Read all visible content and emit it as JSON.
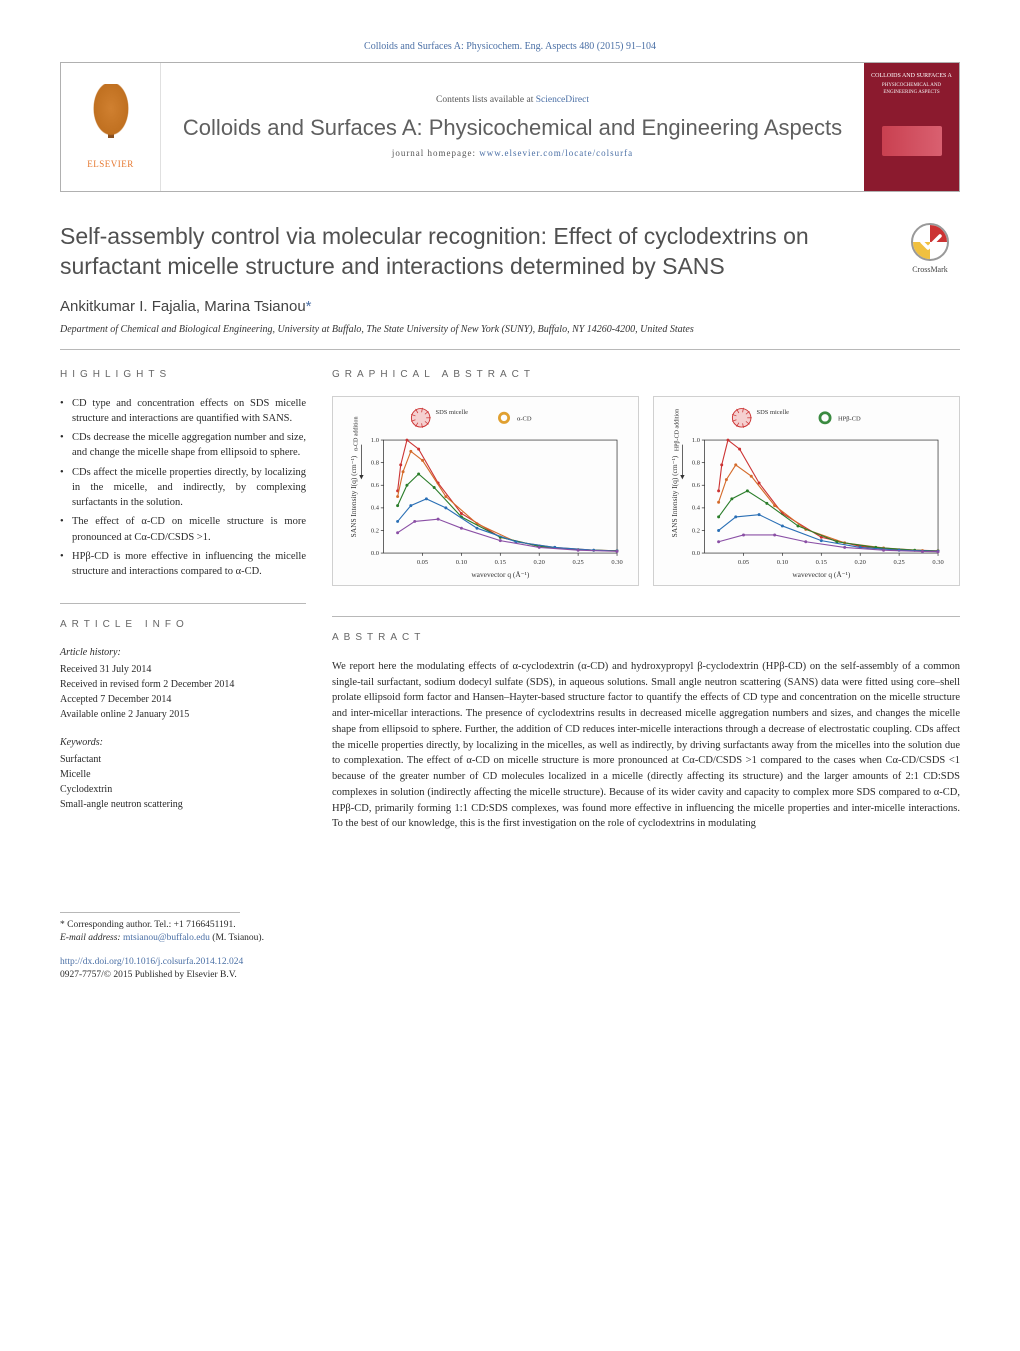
{
  "citation": "Colloids and Surfaces A: Physicochem. Eng. Aspects 480 (2015) 91–104",
  "header": {
    "contents_prefix": "Contents lists available at ",
    "contents_link": "ScienceDirect",
    "journal_name": "Colloids and Surfaces A: Physicochemical and Engineering Aspects",
    "homepage_prefix": "journal homepage: ",
    "homepage_url": "www.elsevier.com/locate/colsurfa",
    "elsevier": "ELSEVIER",
    "cover_title": "COLLOIDS AND SURFACES A",
    "cover_sub": "PHYSICOCHEMICAL AND ENGINEERING ASPECTS"
  },
  "title": "Self-assembly control via molecular recognition: Effect of cyclodextrins on surfactant micelle structure and interactions determined by SANS",
  "crossmark": "CrossMark",
  "authors": "Ankitkumar I. Fajalia, Marina Tsianou",
  "corr_marker": "*",
  "affiliation": "Department of Chemical and Biological Engineering, University at Buffalo, The State University of New York (SUNY), Buffalo, NY 14260-4200, United States",
  "highlights": {
    "label": "HIGHLIGHTS",
    "items": [
      "CD type and concentration effects on SDS micelle structure and interactions are quantified with SANS.",
      "CDs decrease the micelle aggregation number and size, and change the micelle shape from ellipsoid to sphere.",
      "CDs affect the micelle properties directly, by localizing in the micelle, and indirectly, by complexing surfactants in the solution.",
      "The effect of α-CD on micelle structure is more pronounced at Cα-CD/CSDS >1.",
      "HPβ-CD is more effective in influencing the micelle structure and interactions compared to α-CD."
    ]
  },
  "graphical": {
    "label": "GRAPHICAL ABSTRACT",
    "chart_left": {
      "legend": [
        "SDS micelle",
        "α-CD"
      ],
      "side_label": "α-CD addition",
      "ylabel": "SANS Intensity I(q) (cm⁻¹)",
      "xlabel": "wavevector q (Å⁻¹)",
      "xmin": 0.0,
      "xmax": 0.3,
      "xticks": [
        0.05,
        0.1,
        0.15,
        0.2,
        0.25,
        0.3
      ],
      "ymin": 0.0,
      "ymax": 1.0,
      "yticks": [
        0.0,
        0.2,
        0.4,
        0.6,
        0.8,
        1.0
      ],
      "series": [
        {
          "color": "#cc3333",
          "pts": [
            [
              0.018,
              0.55
            ],
            [
              0.022,
              0.78
            ],
            [
              0.03,
              1.0
            ],
            [
              0.045,
              0.92
            ],
            [
              0.07,
              0.62
            ],
            [
              0.1,
              0.35
            ],
            [
              0.15,
              0.14
            ],
            [
              0.2,
              0.06
            ],
            [
              0.25,
              0.03
            ],
            [
              0.3,
              0.02
            ]
          ]
        },
        {
          "color": "#d46a2a",
          "pts": [
            [
              0.018,
              0.5
            ],
            [
              0.025,
              0.72
            ],
            [
              0.035,
              0.9
            ],
            [
              0.05,
              0.82
            ],
            [
              0.08,
              0.5
            ],
            [
              0.12,
              0.26
            ],
            [
              0.17,
              0.1
            ],
            [
              0.22,
              0.05
            ],
            [
              0.27,
              0.025
            ],
            [
              0.3,
              0.018
            ]
          ]
        },
        {
          "color": "#2a7d2a",
          "pts": [
            [
              0.018,
              0.42
            ],
            [
              0.03,
              0.6
            ],
            [
              0.045,
              0.7
            ],
            [
              0.065,
              0.58
            ],
            [
              0.1,
              0.32
            ],
            [
              0.15,
              0.14
            ],
            [
              0.2,
              0.06
            ],
            [
              0.25,
              0.03
            ],
            [
              0.3,
              0.02
            ]
          ]
        },
        {
          "color": "#2a6fb5",
          "pts": [
            [
              0.018,
              0.28
            ],
            [
              0.035,
              0.42
            ],
            [
              0.055,
              0.48
            ],
            [
              0.08,
              0.4
            ],
            [
              0.12,
              0.22
            ],
            [
              0.17,
              0.1
            ],
            [
              0.22,
              0.05
            ],
            [
              0.27,
              0.025
            ],
            [
              0.3,
              0.018
            ]
          ]
        },
        {
          "color": "#8a4fa5",
          "pts": [
            [
              0.018,
              0.18
            ],
            [
              0.04,
              0.28
            ],
            [
              0.07,
              0.3
            ],
            [
              0.1,
              0.22
            ],
            [
              0.15,
              0.11
            ],
            [
              0.2,
              0.05
            ],
            [
              0.25,
              0.025
            ],
            [
              0.3,
              0.015
            ]
          ]
        }
      ],
      "axis_color": "#333333",
      "font_size": 7
    },
    "chart_right": {
      "legend": [
        "SDS micelle",
        "HPβ-CD"
      ],
      "side_label": "HPβ-CD addition",
      "ylabel": "SANS Intensity I(q) (cm⁻¹)",
      "xlabel": "wavevector q (Å⁻¹)",
      "xmin": 0.0,
      "xmax": 0.3,
      "xticks": [
        0.05,
        0.1,
        0.15,
        0.2,
        0.25,
        0.3
      ],
      "ymin": 0.0,
      "ymax": 1.0,
      "yticks": [
        0.0,
        0.2,
        0.4,
        0.6,
        0.8,
        1.0
      ],
      "series": [
        {
          "color": "#cc3333",
          "pts": [
            [
              0.018,
              0.55
            ],
            [
              0.022,
              0.78
            ],
            [
              0.03,
              1.0
            ],
            [
              0.045,
              0.92
            ],
            [
              0.07,
              0.62
            ],
            [
              0.1,
              0.35
            ],
            [
              0.15,
              0.14
            ],
            [
              0.2,
              0.06
            ],
            [
              0.25,
              0.03
            ],
            [
              0.3,
              0.02
            ]
          ]
        },
        {
          "color": "#d46a2a",
          "pts": [
            [
              0.018,
              0.45
            ],
            [
              0.028,
              0.65
            ],
            [
              0.04,
              0.78
            ],
            [
              0.06,
              0.68
            ],
            [
              0.09,
              0.42
            ],
            [
              0.13,
              0.21
            ],
            [
              0.18,
              0.09
            ],
            [
              0.23,
              0.045
            ],
            [
              0.28,
              0.022
            ],
            [
              0.3,
              0.018
            ]
          ]
        },
        {
          "color": "#2a7d2a",
          "pts": [
            [
              0.018,
              0.32
            ],
            [
              0.035,
              0.48
            ],
            [
              0.055,
              0.55
            ],
            [
              0.08,
              0.44
            ],
            [
              0.12,
              0.24
            ],
            [
              0.17,
              0.1
            ],
            [
              0.22,
              0.05
            ],
            [
              0.27,
              0.025
            ],
            [
              0.3,
              0.018
            ]
          ]
        },
        {
          "color": "#2a6fb5",
          "pts": [
            [
              0.018,
              0.2
            ],
            [
              0.04,
              0.32
            ],
            [
              0.07,
              0.34
            ],
            [
              0.1,
              0.24
            ],
            [
              0.15,
              0.11
            ],
            [
              0.2,
              0.05
            ],
            [
              0.25,
              0.025
            ],
            [
              0.3,
              0.015
            ]
          ]
        },
        {
          "color": "#8a4fa5",
          "pts": [
            [
              0.018,
              0.1
            ],
            [
              0.05,
              0.16
            ],
            [
              0.09,
              0.16
            ],
            [
              0.13,
              0.1
            ],
            [
              0.18,
              0.05
            ],
            [
              0.23,
              0.025
            ],
            [
              0.28,
              0.014
            ],
            [
              0.3,
              0.012
            ]
          ]
        }
      ],
      "axis_color": "#333333",
      "font_size": 7
    }
  },
  "article_info": {
    "label": "ARTICLE INFO",
    "history_label": "Article history:",
    "history": [
      "Received 31 July 2014",
      "Received in revised form 2 December 2014",
      "Accepted 7 December 2014",
      "Available online 2 January 2015"
    ],
    "keywords_label": "Keywords:",
    "keywords": [
      "Surfactant",
      "Micelle",
      "Cyclodextrin",
      "Small-angle neutron scattering"
    ]
  },
  "abstract": {
    "label": "ABSTRACT",
    "text": "We report here the modulating effects of α-cyclodextrin (α-CD) and hydroxypropyl β-cyclodextrin (HPβ-CD) on the self-assembly of a common single-tail surfactant, sodium dodecyl sulfate (SDS), in aqueous solutions. Small angle neutron scattering (SANS) data were fitted using core–shell prolate ellipsoid form factor and Hansen–Hayter-based structure factor to quantify the effects of CD type and concentration on the micelle structure and inter-micellar interactions. The presence of cyclodextrins results in decreased micelle aggregation numbers and sizes, and changes the micelle shape from ellipsoid to sphere. Further, the addition of CD reduces inter-micelle interactions through a decrease of electrostatic coupling. CDs affect the micelle properties directly, by localizing in the micelles, as well as indirectly, by driving surfactants away from the micelles into the solution due to complexation. The effect of α-CD on micelle structure is more pronounced at Cα-CD/CSDS >1 compared to the cases when Cα-CD/CSDS <1 because of the greater number of CD molecules localized in a micelle (directly affecting its structure) and the larger amounts of 2:1 CD:SDS complexes in solution (indirectly affecting the micelle structure). Because of its wider cavity and capacity to complex more SDS compared to α-CD, HPβ-CD, primarily forming 1:1 CD:SDS complexes, was found more effective in influencing the micelle properties and inter-micelle interactions. To the best of our knowledge, this is the first investigation on the role of cyclodextrins in modulating"
  },
  "footnote": {
    "corr_label": "Corresponding author. Tel.: +1 7166451191.",
    "email_label": "E-mail address: ",
    "email": "mtsianou@buffalo.edu",
    "email_suffix": " (M. Tsianou)."
  },
  "doi": {
    "url": "http://dx.doi.org/10.1016/j.colsurfa.2014.12.024",
    "issn_line": "0927-7757/© 2015 Published by Elsevier B.V."
  },
  "colors": {
    "link": "#4a6fa5",
    "title_gray": "#505050",
    "elsevier_orange": "#e67830",
    "cover_red": "#8b1a2e"
  }
}
